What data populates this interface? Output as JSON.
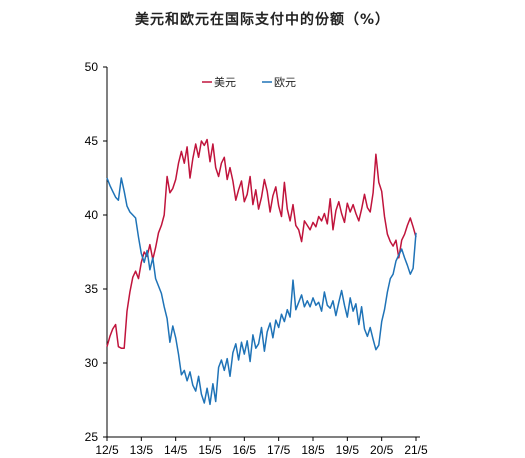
{
  "chart_data": {
    "type": "line",
    "title": "美元和欧元在国际支付中的份额（%）",
    "xlabel": "",
    "ylabel": "",
    "ylim": [
      25,
      50
    ],
    "yticks": [
      25,
      30,
      35,
      40,
      45,
      50
    ],
    "xticks": [
      "12/5",
      "13/5",
      "14/5",
      "15/5",
      "16/5",
      "17/5",
      "18/5",
      "19/5",
      "20/5",
      "21/5"
    ],
    "x_range": [
      "2012-05",
      "2021-05"
    ],
    "grid": false,
    "legend_position": "top-center",
    "series": [
      {
        "name": "美元",
        "color": "#c0143c",
        "points": [
          [
            "2012-05",
            31.1
          ],
          [
            "2012-06",
            31.8
          ],
          [
            "2012-07",
            32.3
          ],
          [
            "2012-08",
            32.6
          ],
          [
            "2012-09",
            31.1
          ],
          [
            "2012-10",
            31.0
          ],
          [
            "2012-11",
            31.0
          ],
          [
            "2012-12",
            33.5
          ],
          [
            "2013-01",
            34.8
          ],
          [
            "2013-02",
            35.8
          ],
          [
            "2013-03",
            36.2
          ],
          [
            "2013-04",
            35.7
          ],
          [
            "2013-05",
            36.8
          ],
          [
            "2013-06",
            37.5
          ],
          [
            "2013-07",
            37.2
          ],
          [
            "2013-08",
            38.0
          ],
          [
            "2013-09",
            37.0
          ],
          [
            "2013-10",
            37.8
          ],
          [
            "2013-11",
            38.8
          ],
          [
            "2013-12",
            39.3
          ],
          [
            "2014-01",
            40.0
          ],
          [
            "2014-02",
            42.6
          ],
          [
            "2014-03",
            41.5
          ],
          [
            "2014-04",
            41.8
          ],
          [
            "2014-05",
            42.4
          ],
          [
            "2014-06",
            43.5
          ],
          [
            "2014-07",
            44.3
          ],
          [
            "2014-08",
            43.5
          ],
          [
            "2014-09",
            44.6
          ],
          [
            "2014-10",
            42.5
          ],
          [
            "2014-11",
            43.8
          ],
          [
            "2014-12",
            44.8
          ],
          [
            "2015-01",
            43.9
          ],
          [
            "2015-02",
            45.0
          ],
          [
            "2015-03",
            44.7
          ],
          [
            "2015-04",
            45.1
          ],
          [
            "2015-05",
            43.6
          ],
          [
            "2015-06",
            44.8
          ],
          [
            "2015-07",
            43.2
          ],
          [
            "2015-08",
            42.6
          ],
          [
            "2015-09",
            43.5
          ],
          [
            "2015-10",
            43.9
          ],
          [
            "2015-11",
            42.4
          ],
          [
            "2015-12",
            43.2
          ],
          [
            "2016-01",
            42.3
          ],
          [
            "2016-02",
            41.0
          ],
          [
            "2016-03",
            41.7
          ],
          [
            "2016-04",
            42.3
          ],
          [
            "2016-05",
            40.9
          ],
          [
            "2016-06",
            41.4
          ],
          [
            "2016-07",
            42.6
          ],
          [
            "2016-08",
            40.7
          ],
          [
            "2016-09",
            41.7
          ],
          [
            "2016-10",
            40.4
          ],
          [
            "2016-11",
            41.2
          ],
          [
            "2016-12",
            42.4
          ],
          [
            "2017-01",
            41.6
          ],
          [
            "2017-02",
            40.2
          ],
          [
            "2017-03",
            41.3
          ],
          [
            "2017-04",
            41.9
          ],
          [
            "2017-05",
            40.6
          ],
          [
            "2017-06",
            39.9
          ],
          [
            "2017-07",
            42.2
          ],
          [
            "2017-08",
            40.4
          ],
          [
            "2017-09",
            39.6
          ],
          [
            "2017-10",
            40.7
          ],
          [
            "2017-11",
            39.3
          ],
          [
            "2017-12",
            39.0
          ],
          [
            "2018-01",
            38.2
          ],
          [
            "2018-02",
            39.6
          ],
          [
            "2018-03",
            39.3
          ],
          [
            "2018-04",
            39.0
          ],
          [
            "2018-05",
            39.5
          ],
          [
            "2018-06",
            39.2
          ],
          [
            "2018-07",
            39.9
          ],
          [
            "2018-08",
            39.6
          ],
          [
            "2018-09",
            40.1
          ],
          [
            "2018-10",
            39.4
          ],
          [
            "2018-11",
            41.1
          ],
          [
            "2018-12",
            39.0
          ],
          [
            "2019-01",
            40.3
          ],
          [
            "2019-02",
            40.9
          ],
          [
            "2019-03",
            40.1
          ],
          [
            "2019-04",
            39.5
          ],
          [
            "2019-05",
            40.8
          ],
          [
            "2019-06",
            40.2
          ],
          [
            "2019-07",
            40.7
          ],
          [
            "2019-08",
            40.1
          ],
          [
            "2019-09",
            39.6
          ],
          [
            "2019-10",
            40.4
          ],
          [
            "2019-11",
            41.4
          ],
          [
            "2019-12",
            40.5
          ],
          [
            "2020-01",
            40.2
          ],
          [
            "2020-02",
            41.5
          ],
          [
            "2020-03",
            44.1
          ],
          [
            "2020-04",
            42.2
          ],
          [
            "2020-05",
            41.6
          ],
          [
            "2020-06",
            39.9
          ],
          [
            "2020-07",
            38.7
          ],
          [
            "2020-08",
            38.2
          ],
          [
            "2020-09",
            37.9
          ],
          [
            "2020-10",
            38.3
          ],
          [
            "2020-11",
            37.1
          ],
          [
            "2020-12",
            38.3
          ],
          [
            "2021-01",
            38.7
          ],
          [
            "2021-02",
            39.3
          ],
          [
            "2021-03",
            39.8
          ],
          [
            "2021-04",
            39.2
          ],
          [
            "2021-05",
            38.5
          ]
        ]
      },
      {
        "name": "欧元",
        "color": "#1f73b7",
        "points": [
          [
            "2012-05",
            42.5
          ],
          [
            "2012-06",
            42.0
          ],
          [
            "2012-07",
            41.6
          ],
          [
            "2012-08",
            41.2
          ],
          [
            "2012-09",
            41.0
          ],
          [
            "2012-10",
            42.5
          ],
          [
            "2012-11",
            41.6
          ],
          [
            "2012-12",
            40.6
          ],
          [
            "2013-01",
            40.2
          ],
          [
            "2013-02",
            40.0
          ],
          [
            "2013-03",
            39.8
          ],
          [
            "2013-04",
            38.5
          ],
          [
            "2013-05",
            37.4
          ],
          [
            "2013-06",
            36.8
          ],
          [
            "2013-07",
            37.6
          ],
          [
            "2013-08",
            36.3
          ],
          [
            "2013-09",
            37.1
          ],
          [
            "2013-10",
            35.7
          ],
          [
            "2013-11",
            35.2
          ],
          [
            "2013-12",
            34.7
          ],
          [
            "2014-01",
            33.8
          ],
          [
            "2014-02",
            33.0
          ],
          [
            "2014-03",
            31.4
          ],
          [
            "2014-04",
            32.5
          ],
          [
            "2014-05",
            31.7
          ],
          [
            "2014-06",
            30.6
          ],
          [
            "2014-07",
            29.2
          ],
          [
            "2014-08",
            29.5
          ],
          [
            "2014-09",
            28.8
          ],
          [
            "2014-10",
            29.4
          ],
          [
            "2014-11",
            28.5
          ],
          [
            "2014-12",
            28.1
          ],
          [
            "2015-01",
            29.1
          ],
          [
            "2015-02",
            27.9
          ],
          [
            "2015-03",
            27.3
          ],
          [
            "2015-04",
            28.3
          ],
          [
            "2015-05",
            27.2
          ],
          [
            "2015-06",
            28.6
          ],
          [
            "2015-07",
            27.4
          ],
          [
            "2015-08",
            29.7
          ],
          [
            "2015-09",
            30.2
          ],
          [
            "2015-10",
            29.5
          ],
          [
            "2015-11",
            30.3
          ],
          [
            "2015-12",
            29.1
          ],
          [
            "2016-01",
            30.7
          ],
          [
            "2016-02",
            31.3
          ],
          [
            "2016-03",
            30.2
          ],
          [
            "2016-04",
            31.4
          ],
          [
            "2016-05",
            30.6
          ],
          [
            "2016-06",
            31.5
          ],
          [
            "2016-07",
            30.1
          ],
          [
            "2016-08",
            31.9
          ],
          [
            "2016-09",
            31.0
          ],
          [
            "2016-10",
            31.3
          ],
          [
            "2016-11",
            32.4
          ],
          [
            "2016-12",
            30.8
          ],
          [
            "2017-01",
            32.1
          ],
          [
            "2017-02",
            32.7
          ],
          [
            "2017-03",
            31.7
          ],
          [
            "2017-04",
            32.9
          ],
          [
            "2017-05",
            32.4
          ],
          [
            "2017-06",
            33.3
          ],
          [
            "2017-07",
            32.8
          ],
          [
            "2017-08",
            33.6
          ],
          [
            "2017-09",
            33.1
          ],
          [
            "2017-10",
            35.6
          ],
          [
            "2017-11",
            33.6
          ],
          [
            "2017-12",
            34.1
          ],
          [
            "2018-01",
            34.6
          ],
          [
            "2018-02",
            33.8
          ],
          [
            "2018-03",
            34.2
          ],
          [
            "2018-04",
            33.8
          ],
          [
            "2018-05",
            34.4
          ],
          [
            "2018-06",
            33.9
          ],
          [
            "2018-07",
            34.1
          ],
          [
            "2018-08",
            33.5
          ],
          [
            "2018-09",
            34.8
          ],
          [
            "2018-10",
            33.9
          ],
          [
            "2018-11",
            33.7
          ],
          [
            "2018-12",
            34.2
          ],
          [
            "2019-01",
            33.2
          ],
          [
            "2019-02",
            34.1
          ],
          [
            "2019-03",
            34.9
          ],
          [
            "2019-04",
            33.9
          ],
          [
            "2019-05",
            33.1
          ],
          [
            "2019-06",
            34.4
          ],
          [
            "2019-07",
            33.5
          ],
          [
            "2019-08",
            34.0
          ],
          [
            "2019-09",
            32.6
          ],
          [
            "2019-10",
            33.8
          ],
          [
            "2019-11",
            32.3
          ],
          [
            "2019-12",
            31.8
          ],
          [
            "2020-01",
            32.4
          ],
          [
            "2020-02",
            31.6
          ],
          [
            "2020-03",
            30.9
          ],
          [
            "2020-04",
            31.2
          ],
          [
            "2020-05",
            32.8
          ],
          [
            "2020-06",
            33.6
          ],
          [
            "2020-07",
            34.8
          ],
          [
            "2020-08",
            35.7
          ],
          [
            "2020-09",
            36.0
          ],
          [
            "2020-10",
            36.9
          ],
          [
            "2020-11",
            37.3
          ],
          [
            "2020-12",
            37.7
          ],
          [
            "2021-01",
            37.1
          ],
          [
            "2021-02",
            36.6
          ],
          [
            "2021-03",
            36.0
          ],
          [
            "2021-04",
            36.4
          ],
          [
            "2021-05",
            38.8
          ]
        ]
      }
    ]
  }
}
